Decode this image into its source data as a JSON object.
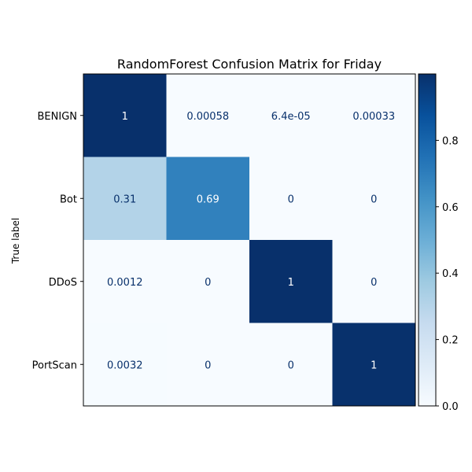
{
  "chart_data": {
    "type": "heatmap",
    "title": "RandomForest Confusion Matrix for Friday",
    "ylabel": "True label",
    "xlabel": "",
    "row_labels": [
      "BENIGN",
      "Bot",
      "DDoS",
      "PortScan"
    ],
    "col_labels": [],
    "values": [
      [
        0.99901,
        0.00058,
        6.4e-05,
        0.00033
      ],
      [
        0.31,
        0.69,
        0,
        0
      ],
      [
        0.0012,
        0,
        0.9988,
        0
      ],
      [
        0.0032,
        0,
        0,
        0.9968
      ]
    ],
    "cell_labels": [
      [
        "1",
        "0.00058",
        "6.4e-05",
        "0.00033"
      ],
      [
        "0.31",
        "0.69",
        "0",
        "0"
      ],
      [
        "0.0012",
        "0",
        "1",
        "0"
      ],
      [
        "0.0032",
        "0",
        "0",
        "1"
      ]
    ],
    "colormap": "Blues",
    "colorbar": {
      "range": [
        0,
        1
      ],
      "ticks": [
        0.0,
        0.2,
        0.4,
        0.6,
        0.8
      ],
      "tick_labels": [
        "0.0",
        "0.2",
        "0.4",
        "0.6",
        "0.8"
      ]
    },
    "text_colors": {
      "dark_cell": "#ffffff",
      "light_cell": "#08306b"
    }
  }
}
